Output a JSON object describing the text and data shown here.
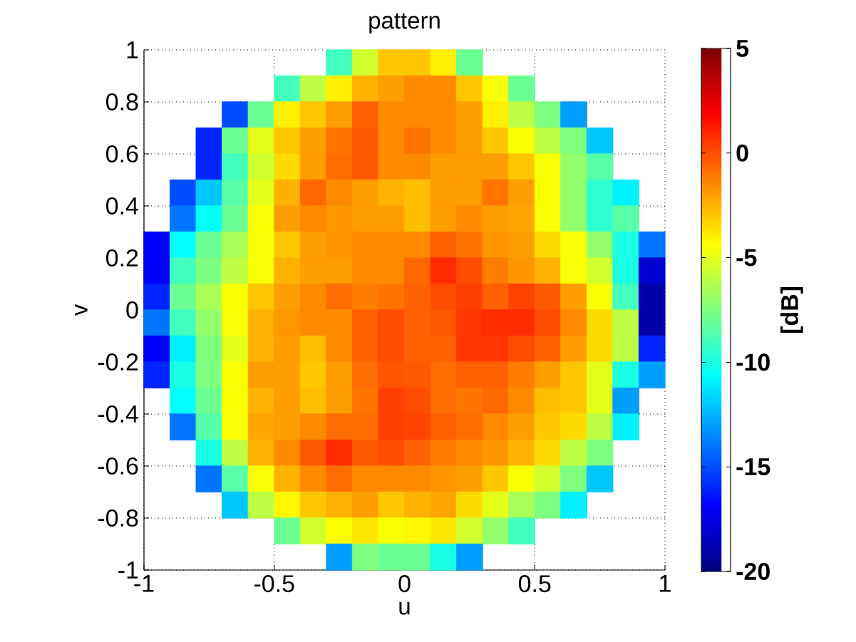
{
  "chart_data": {
    "type": "scatter",
    "title": "pattern",
    "xlabel": "u",
    "ylabel": "v",
    "clabel": "[dB]",
    "marker": "square",
    "grid": true,
    "xlim": [
      -1,
      1
    ],
    "ylim": [
      -1,
      1
    ],
    "xticks": [
      -1,
      -0.5,
      0,
      0.5,
      1
    ],
    "yticks": [
      -1,
      -0.8,
      -0.6,
      -0.4,
      -0.2,
      0,
      0.2,
      0.4,
      0.6,
      0.8,
      1
    ],
    "clim": [
      -20,
      5
    ],
    "cticks": [
      -20,
      -15,
      -10,
      -5,
      0,
      5
    ],
    "x": [
      -0.25,
      -0.15,
      -0.05,
      0.05,
      0.15,
      0.25,
      -0.45,
      -0.35,
      -0.25,
      -0.15,
      -0.05,
      0.05,
      0.15,
      0.25,
      0.35,
      0.45,
      -0.65,
      -0.55,
      -0.45,
      -0.35,
      -0.25,
      -0.15,
      -0.05,
      0.05,
      0.15,
      0.25,
      0.35,
      0.45,
      0.55,
      0.65,
      -0.75,
      -0.65,
      -0.55,
      -0.45,
      -0.35,
      -0.25,
      -0.15,
      -0.05,
      0.05,
      0.15,
      0.25,
      0.35,
      0.45,
      0.55,
      0.65,
      0.75,
      -0.75,
      -0.65,
      -0.55,
      -0.45,
      -0.35,
      -0.25,
      -0.15,
      -0.05,
      0.05,
      0.15,
      0.25,
      0.35,
      0.45,
      0.55,
      0.65,
      0.75,
      -0.85,
      -0.75,
      -0.65,
      -0.55,
      -0.45,
      -0.35,
      -0.25,
      -0.15,
      -0.05,
      0.05,
      0.15,
      0.25,
      0.35,
      0.45,
      0.55,
      0.65,
      0.75,
      0.85,
      -0.85,
      -0.75,
      -0.65,
      -0.55,
      -0.45,
      -0.35,
      -0.25,
      -0.15,
      -0.05,
      0.05,
      0.15,
      0.25,
      0.35,
      0.45,
      0.55,
      0.65,
      0.75,
      0.85,
      -0.95,
      -0.85,
      -0.75,
      -0.65,
      -0.55,
      -0.45,
      -0.35,
      -0.25,
      -0.15,
      -0.05,
      0.05,
      0.15,
      0.25,
      0.35,
      0.45,
      0.55,
      0.65,
      0.75,
      0.85,
      0.95,
      -0.95,
      -0.85,
      -0.75,
      -0.65,
      -0.55,
      -0.45,
      -0.35,
      -0.25,
      -0.15,
      -0.05,
      0.05,
      0.15,
      0.25,
      0.35,
      0.45,
      0.55,
      0.65,
      0.75,
      0.85,
      0.95,
      -0.95,
      -0.85,
      -0.75,
      -0.65,
      -0.55,
      -0.45,
      -0.35,
      -0.25,
      -0.15,
      -0.05,
      0.05,
      0.15,
      0.25,
      0.35,
      0.45,
      0.55,
      0.65,
      0.75,
      0.85,
      0.95,
      -0.95,
      -0.85,
      -0.75,
      -0.65,
      -0.55,
      -0.45,
      -0.35,
      -0.25,
      -0.15,
      -0.05,
      0.05,
      0.15,
      0.25,
      0.35,
      0.45,
      0.55,
      0.65,
      0.75,
      0.85,
      0.95,
      -0.95,
      -0.85,
      -0.75,
      -0.65,
      -0.55,
      -0.45,
      -0.35,
      -0.25,
      -0.15,
      -0.05,
      0.05,
      0.15,
      0.25,
      0.35,
      0.45,
      0.55,
      0.65,
      0.75,
      0.85,
      0.95,
      -0.95,
      -0.85,
      -0.75,
      -0.65,
      -0.55,
      -0.45,
      -0.35,
      -0.25,
      -0.15,
      -0.05,
      0.05,
      0.15,
      0.25,
      0.35,
      0.45,
      0.55,
      0.65,
      0.75,
      0.85,
      0.95,
      -0.85,
      -0.75,
      -0.65,
      -0.55,
      -0.45,
      -0.35,
      -0.25,
      -0.15,
      -0.05,
      0.05,
      0.15,
      0.25,
      0.35,
      0.45,
      0.55,
      0.65,
      0.75,
      0.85,
      -0.85,
      -0.75,
      -0.65,
      -0.55,
      -0.45,
      -0.35,
      -0.25,
      -0.15,
      -0.05,
      0.05,
      0.15,
      0.25,
      0.35,
      0.45,
      0.55,
      0.65,
      0.75,
      0.85,
      -0.75,
      -0.65,
      -0.55,
      -0.45,
      -0.35,
      -0.25,
      -0.15,
      -0.05,
      0.05,
      0.15,
      0.25,
      0.35,
      0.45,
      0.55,
      0.65,
      0.75,
      -0.75,
      -0.65,
      -0.55,
      -0.45,
      -0.35,
      -0.25,
      -0.15,
      -0.05,
      0.05,
      0.15,
      0.25,
      0.35,
      0.45,
      0.55,
      0.65,
      0.75,
      -0.65,
      -0.55,
      -0.45,
      -0.35,
      -0.25,
      -0.15,
      -0.05,
      0.05,
      0.15,
      0.25,
      0.35,
      0.45,
      0.55,
      0.65,
      -0.45,
      -0.35,
      -0.25,
      -0.15,
      -0.05,
      0.05,
      0.15,
      0.25,
      0.35,
      0.45,
      -0.25,
      -0.15,
      -0.05,
      0.05,
      0.15,
      0.25
    ],
    "values": [
      0.95,
      0.95,
      0.95,
      0.95,
      0.95,
      0.95,
      0.85,
      0.85,
      0.85,
      0.85,
      0.85,
      0.85,
      0.85,
      0.85,
      0.85,
      0.85,
      0.75,
      0.75,
      0.75,
      0.75,
      0.75,
      0.75,
      0.75,
      0.75,
      0.75,
      0.75,
      0.75,
      0.75,
      0.75,
      0.75,
      0.65,
      0.65,
      0.65,
      0.65,
      0.65,
      0.65,
      0.65,
      0.65,
      0.65,
      0.65,
      0.65,
      0.65,
      0.65,
      0.65,
      0.65,
      0.65,
      0.55,
      0.55,
      0.55,
      0.55,
      0.55,
      0.55,
      0.55,
      0.55,
      0.55,
      0.55,
      0.55,
      0.55,
      0.55,
      0.55,
      0.55,
      0.55,
      0.45,
      0.45,
      0.45,
      0.45,
      0.45,
      0.45,
      0.45,
      0.45,
      0.45,
      0.45,
      0.45,
      0.45,
      0.45,
      0.45,
      0.45,
      0.45,
      0.45,
      0.45,
      0.35,
      0.35,
      0.35,
      0.35,
      0.35,
      0.35,
      0.35,
      0.35,
      0.35,
      0.35,
      0.35,
      0.35,
      0.35,
      0.35,
      0.35,
      0.35,
      0.35,
      0.35,
      0.25,
      0.25,
      0.25,
      0.25,
      0.25,
      0.25,
      0.25,
      0.25,
      0.25,
      0.25,
      0.25,
      0.25,
      0.25,
      0.25,
      0.25,
      0.25,
      0.25,
      0.25,
      0.25,
      0.25,
      0.15,
      0.15,
      0.15,
      0.15,
      0.15,
      0.15,
      0.15,
      0.15,
      0.15,
      0.15,
      0.15,
      0.15,
      0.15,
      0.15,
      0.15,
      0.15,
      0.15,
      0.15,
      0.15,
      0.15,
      0.05,
      0.05,
      0.05,
      0.05,
      0.05,
      0.05,
      0.05,
      0.05,
      0.05,
      0.05,
      0.05,
      0.05,
      0.05,
      0.05,
      0.05,
      0.05,
      0.05,
      0.05,
      0.05,
      0.05,
      -0.05,
      -0.05,
      -0.05,
      -0.05,
      -0.05,
      -0.05,
      -0.05,
      -0.05,
      -0.05,
      -0.05,
      -0.05,
      -0.05,
      -0.05,
      -0.05,
      -0.05,
      -0.05,
      -0.05,
      -0.05,
      -0.05,
      -0.05,
      -0.15,
      -0.15,
      -0.15,
      -0.15,
      -0.15,
      -0.15,
      -0.15,
      -0.15,
      -0.15,
      -0.15,
      -0.15,
      -0.15,
      -0.15,
      -0.15,
      -0.15,
      -0.15,
      -0.15,
      -0.15,
      -0.15,
      -0.15,
      -0.25,
      -0.25,
      -0.25,
      -0.25,
      -0.25,
      -0.25,
      -0.25,
      -0.25,
      -0.25,
      -0.25,
      -0.25,
      -0.25,
      -0.25,
      -0.25,
      -0.25,
      -0.25,
      -0.25,
      -0.25,
      -0.25,
      -0.25,
      -0.35,
      -0.35,
      -0.35,
      -0.35,
      -0.35,
      -0.35,
      -0.35,
      -0.35,
      -0.35,
      -0.35,
      -0.35,
      -0.35,
      -0.35,
      -0.35,
      -0.35,
      -0.35,
      -0.35,
      -0.35,
      -0.45,
      -0.45,
      -0.45,
      -0.45,
      -0.45,
      -0.45,
      -0.45,
      -0.45,
      -0.45,
      -0.45,
      -0.45,
      -0.45,
      -0.45,
      -0.45,
      -0.45,
      -0.45,
      -0.45,
      -0.45,
      -0.55,
      -0.55,
      -0.55,
      -0.55,
      -0.55,
      -0.55,
      -0.55,
      -0.55,
      -0.55,
      -0.55,
      -0.55,
      -0.55,
      -0.55,
      -0.55,
      -0.55,
      -0.55,
      -0.65,
      -0.65,
      -0.65,
      -0.65,
      -0.65,
      -0.65,
      -0.65,
      -0.65,
      -0.65,
      -0.65,
      -0.65,
      -0.65,
      -0.65,
      -0.65,
      -0.65,
      -0.65,
      -0.75,
      -0.75,
      -0.75,
      -0.75,
      -0.75,
      -0.75,
      -0.75,
      -0.75,
      -0.75,
      -0.75,
      -0.75,
      -0.75,
      -0.75,
      -0.75,
      -0.85,
      -0.85,
      -0.85,
      -0.85,
      -0.85,
      -0.85,
      -0.85,
      -0.85,
      -0.85,
      -0.85,
      -0.95,
      -0.95,
      -0.95,
      -0.95,
      -0.95,
      -0.95
    ],
    "cvalues": [
      -9,
      -5.5,
      -3,
      -3,
      -4,
      -8,
      -9,
      -6,
      -4,
      -2.5,
      -2,
      -1.5,
      -1.5,
      -3,
      -4.5,
      -8,
      -15,
      -8,
      -4,
      -3,
      -2,
      -0.5,
      -1.5,
      -1.5,
      -1.5,
      -2,
      -4,
      -6,
      -7.5,
      -13,
      -16,
      -8,
      -5,
      -3,
      -2,
      -1,
      -0.3,
      -1.5,
      -1,
      -1.5,
      -2,
      -3,
      -4.5,
      -6,
      -7.5,
      -12,
      -16,
      -9,
      -5.5,
      -3.5,
      -2,
      -0.8,
      -0.3,
      -1.5,
      -1.5,
      -2,
      -2,
      -2,
      -3,
      -4.5,
      -7,
      -8.5,
      -15,
      -12,
      -8.5,
      -5,
      -2.5,
      -0.7,
      -1.5,
      -2,
      -2.5,
      -2.8,
      -2,
      -2,
      -1,
      -2,
      -4.5,
      -7,
      -9.5,
      -11,
      -14,
      -10.5,
      -8,
      -4.5,
      -2,
      -1.5,
      -1.8,
      -2,
      -2,
      -2.8,
      -2,
      -1.5,
      -2,
      -2.2,
      -4.5,
      -7,
      -9.5,
      -8.5,
      -17,
      -10.5,
      -8,
      -6.5,
      -4.5,
      -3,
      -2,
      -1.8,
      -1.5,
      -1.5,
      -1.5,
      -0.5,
      -1,
      -1.8,
      -2,
      -3.5,
      -4.5,
      -7,
      -10,
      -14,
      -17,
      -9,
      -7.5,
      -6,
      -4.5,
      -2.5,
      -2,
      -2,
      -1.5,
      -1.5,
      -0.7,
      0.8,
      0,
      -1.2,
      -1.8,
      -2.5,
      -4.5,
      -5.5,
      -10,
      -18,
      -16,
      -8,
      -6.5,
      -4.5,
      -3,
      -2,
      -1.5,
      -0.8,
      -1.2,
      -1,
      -0.5,
      0,
      0.3,
      -0.5,
      0.2,
      -0.3,
      -2,
      -4.5,
      -9,
      -19,
      -14,
      -9,
      -7,
      -4.5,
      -2.5,
      -1.8,
      -1.5,
      -1.5,
      -0.5,
      0,
      -0.5,
      -0.3,
      0.5,
      0.8,
      0.8,
      0,
      -1.5,
      -3.5,
      -6,
      -19,
      -17,
      -11,
      -7.5,
      -5,
      -2.5,
      -2,
      -2.8,
      -1.5,
      -0.5,
      0,
      -0.5,
      -0.5,
      0.5,
      0.5,
      0,
      -0.5,
      -2,
      -3.5,
      -6,
      -16,
      -16,
      -10,
      -7.5,
      -4.5,
      -2,
      -2,
      -3,
      -2,
      -0.8,
      -0.2,
      -0.3,
      -0.8,
      -0.5,
      -0.5,
      -1.2,
      -2,
      -3,
      -5,
      -10,
      -13,
      -10.5,
      -8,
      -4.5,
      -2.5,
      -2,
      -2.8,
      -2,
      -1,
      0.3,
      0,
      -0.8,
      -1,
      -0.7,
      -1.5,
      -2.8,
      -3,
      -5,
      -13,
      -14,
      -8.5,
      -4.5,
      -2.2,
      -2,
      -1.5,
      -0.8,
      -0.8,
      0.3,
      0.2,
      -0.5,
      -0.8,
      -1.5,
      -2,
      -3,
      -3.5,
      -6,
      -11,
      -10,
      -6,
      -2.5,
      -1.5,
      -0.3,
      0.8,
      -0.3,
      0,
      -0.5,
      -1.2,
      -1.5,
      -1.8,
      -2.5,
      -3.5,
      -6,
      -7.5,
      -14,
      -8.5,
      -4.5,
      -2.5,
      -1.5,
      -0.8,
      -1.5,
      -1.5,
      -1.5,
      -1.8,
      -2,
      -3,
      -4.5,
      -5.5,
      -7.5,
      -12,
      -12,
      -6,
      -4.2,
      -3,
      -2.5,
      -2,
      -3,
      -2.5,
      -2.2,
      -3.5,
      -5,
      -6.5,
      -7.5,
      -11,
      -8,
      -5.5,
      -4.5,
      -3.8,
      -4.5,
      -4.2,
      -3.8,
      -5.5,
      -7,
      -9,
      -13,
      -7.5,
      -8,
      -8,
      -10,
      -13
    ]
  }
}
